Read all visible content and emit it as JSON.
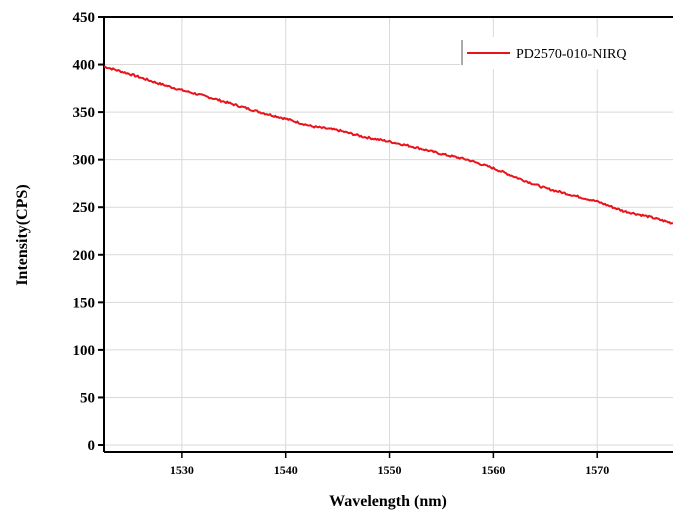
{
  "chart_data": {
    "type": "line",
    "title": "",
    "xlabel": "Wavelength (nm)",
    "ylabel": "Intensity(CPS)",
    "xlim": [
      1522.5,
      1577.3
    ],
    "ylim": [
      0,
      450
    ],
    "xticks": [
      1530,
      1540,
      1550,
      1560,
      1570
    ],
    "yticks": [
      0,
      50,
      100,
      150,
      200,
      250,
      300,
      350,
      400,
      450
    ],
    "grid": true,
    "legend_position": "top-right",
    "series": [
      {
        "name": "PD2570-010-NIRQ",
        "color": "#e8141c",
        "x": [
          1522.5,
          1525,
          1527.5,
          1530,
          1532.5,
          1535,
          1537.5,
          1540,
          1542.5,
          1545,
          1547.5,
          1550,
          1552.5,
          1555,
          1557.5,
          1560,
          1562.5,
          1565,
          1567.5,
          1570,
          1572.5,
          1575,
          1577.3
        ],
        "y": [
          398,
          390,
          381,
          373,
          366,
          358,
          350,
          343,
          335,
          331,
          324,
          319,
          313,
          306,
          300,
          291,
          280,
          270,
          263,
          256,
          246,
          240,
          233
        ]
      }
    ]
  }
}
